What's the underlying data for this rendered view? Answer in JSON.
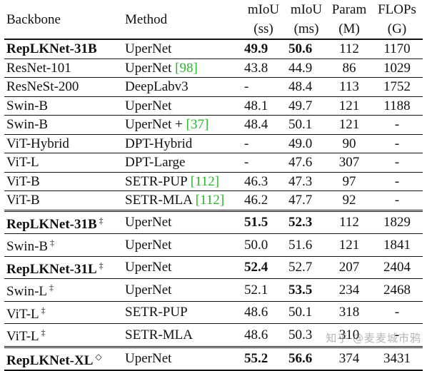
{
  "columns": {
    "backbone": "Backbone",
    "method": "Method",
    "miou_ss_top": "mIoU",
    "miou_ss_bottom": "(ss)",
    "miou_ms_top": "mIoU",
    "miou_ms_bottom": "(ms)",
    "param_top": "Param",
    "param_bottom": "(M)",
    "flops_top": "FLOPs",
    "flops_bottom": "(G)"
  },
  "rows": [
    {
      "backbone": "RepLKNet-31B",
      "backbone_bold": true,
      "mark": "",
      "method": "UperNet",
      "ref": "",
      "ss": "49.9",
      "ss_bold": true,
      "ms": "50.6",
      "ms_bold": true,
      "param": "112",
      "flops": "1170"
    },
    {
      "backbone": "ResNet-101",
      "backbone_bold": false,
      "mark": "",
      "method": "UperNet ",
      "ref": "[98]",
      "ss": "43.8",
      "ss_bold": false,
      "ms": "44.9",
      "ms_bold": false,
      "param": "86",
      "flops": "1029"
    },
    {
      "backbone": "ResNeSt-200",
      "backbone_bold": false,
      "mark": "",
      "method": "DeepLabv3",
      "ref": "",
      "ss": "-",
      "ss_bold": false,
      "ms": "48.4",
      "ms_bold": false,
      "param": "113",
      "flops": "1752"
    },
    {
      "backbone": "Swin-B",
      "backbone_bold": false,
      "mark": "",
      "method": "UperNet",
      "ref": "",
      "ss": "48.1",
      "ss_bold": false,
      "ms": "49.7",
      "ms_bold": false,
      "param": "121",
      "flops": "1188"
    },
    {
      "backbone": "Swin-B",
      "backbone_bold": false,
      "mark": "",
      "method": "UperNet + ",
      "ref": "[37]",
      "ss": "48.4",
      "ss_bold": false,
      "ms": "50.1",
      "ms_bold": false,
      "param": "121",
      "flops": "-"
    },
    {
      "backbone": "ViT-Hybrid",
      "backbone_bold": false,
      "mark": "",
      "method": "DPT-Hybrid",
      "ref": "",
      "ss": "-",
      "ss_bold": false,
      "ms": "49.0",
      "ms_bold": false,
      "param": "90",
      "flops": "-"
    },
    {
      "backbone": "ViT-L",
      "backbone_bold": false,
      "mark": "",
      "method": "DPT-Large",
      "ref": "",
      "ss": "-",
      "ss_bold": false,
      "ms": "47.6",
      "ms_bold": false,
      "param": "307",
      "flops": "-"
    },
    {
      "backbone": "ViT-B",
      "backbone_bold": false,
      "mark": "",
      "method": "SETR-PUP ",
      "ref": "[112]",
      "ss": "46.3",
      "ss_bold": false,
      "ms": "47.3",
      "ms_bold": false,
      "param": "97",
      "flops": "-"
    },
    {
      "backbone": "ViT-B",
      "backbone_bold": false,
      "mark": "",
      "method": "SETR-MLA ",
      "ref": "[112]",
      "ss": "46.2",
      "ss_bold": false,
      "ms": "47.7",
      "ms_bold": false,
      "param": "92",
      "flops": "-"
    },
    {
      "backbone": "RepLKNet-31B",
      "backbone_bold": true,
      "mark": "‡",
      "method": "UperNet",
      "ref": "",
      "ss": "51.5",
      "ss_bold": true,
      "ms": "52.3",
      "ms_bold": true,
      "param": "112",
      "flops": "1829"
    },
    {
      "backbone": "Swin-B",
      "backbone_bold": false,
      "mark": "‡",
      "method": "UperNet",
      "ref": "",
      "ss": "50.0",
      "ss_bold": false,
      "ms": "51.6",
      "ms_bold": false,
      "param": "121",
      "flops": "1841"
    },
    {
      "backbone": "RepLKNet-31L",
      "backbone_bold": true,
      "mark": "‡",
      "method": "UperNet",
      "ref": "",
      "ss": "52.4",
      "ss_bold": true,
      "ms": "52.7",
      "ms_bold": false,
      "param": "207",
      "flops": "2404"
    },
    {
      "backbone": "Swin-L",
      "backbone_bold": false,
      "mark": "‡",
      "method": "UperNet",
      "ref": "",
      "ss": "52.1",
      "ss_bold": false,
      "ms": "53.5",
      "ms_bold": true,
      "param": "234",
      "flops": "2468"
    },
    {
      "backbone": "ViT-L",
      "backbone_bold": false,
      "mark": "‡",
      "method": "SETR-PUP",
      "ref": "",
      "ss": "48.6",
      "ss_bold": false,
      "ms": "50.1",
      "ms_bold": false,
      "param": "318",
      "flops": "-"
    },
    {
      "backbone": "ViT-L",
      "backbone_bold": false,
      "mark": "‡",
      "method": "SETR-MLA",
      "ref": "",
      "ss": "48.6",
      "ss_bold": false,
      "ms": "50.3",
      "ms_bold": false,
      "param": "310",
      "flops": "-"
    },
    {
      "backbone": "RepLKNet-XL",
      "backbone_bold": true,
      "mark": "◇",
      "method": "UperNet",
      "ref": "",
      "ss": "55.2",
      "ss_bold": true,
      "ms": "56.6",
      "ms_bold": true,
      "param": "374",
      "flops": "3431"
    }
  ],
  "row_rules": [
    "top",
    "mid",
    "mid",
    "mid",
    "mid",
    "mid",
    "mid",
    "mid",
    "mid",
    "double",
    "mid",
    "mid",
    "mid",
    "mid",
    "mid",
    "double"
  ],
  "watermark": "知乎 @麦麦城市鸦",
  "colors": {
    "ref_link": "#2bb52b",
    "text": "#111111"
  }
}
